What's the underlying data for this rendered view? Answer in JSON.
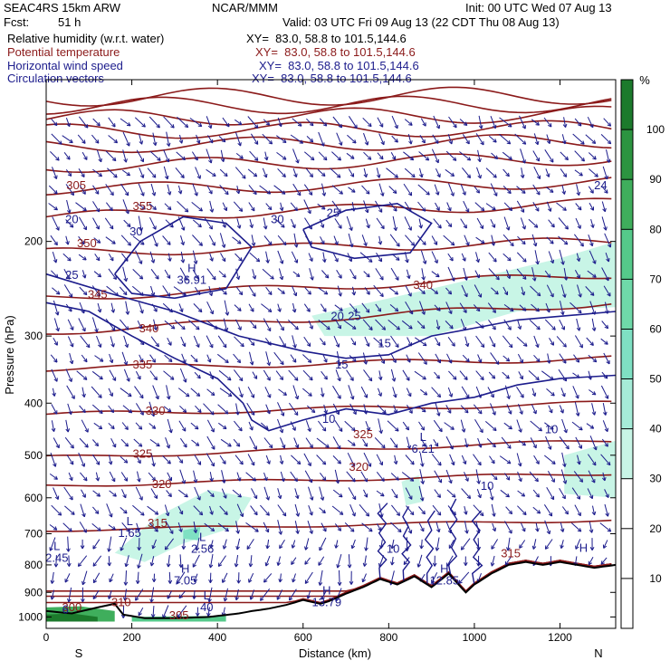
{
  "header": {
    "model": "SEAC4RS 15km ARW",
    "center": "NCAR/MMM",
    "init": "Init: 00 UTC Wed 07 Aug 13",
    "fcst_label": "Fcst:",
    "fcst_value": "51 h",
    "valid": "Valid: 03 UTC Fri 09 Aug 13 (22 CDT Thu 08 Aug 13)",
    "fields": [
      {
        "name": "Relative humidity (w.r.t. water)",
        "xy": "XY=  83.0, 58.8 to 101.5,144.6",
        "color": "#000000"
      },
      {
        "name": "Potential temperature",
        "xy": "XY=  83.0, 58.8 to 101.5,144.6",
        "color": "#8b1a1a"
      },
      {
        "name": "Horizontal wind speed",
        "xy": "XY=  83.0, 58.8 to 101.5,144.6",
        "color": "#1c1c8c"
      },
      {
        "name": "Circulation vectors",
        "xy": "XY=  83.0, 58.8 to 101.5,144.6",
        "color": "#1c1c8c"
      }
    ]
  },
  "chart_data": {
    "type": "heatmap",
    "xlabel": "Distance (km)",
    "ylabel": "Pressure (hPa)",
    "xlim": [
      0,
      1330
    ],
    "ylim": [
      1050,
      100
    ],
    "y_scale": "log",
    "x_ticks": [
      0,
      200,
      400,
      600,
      800,
      1000,
      1200
    ],
    "y_ticks": [
      200,
      300,
      400,
      500,
      600,
      700,
      800,
      900,
      1000
    ],
    "x_endpoints": {
      "left": "S",
      "right": "N"
    },
    "colorbar": {
      "unit": "%",
      "ticks": [
        10,
        20,
        30,
        40,
        50,
        60,
        70,
        80,
        90,
        100
      ],
      "colors": [
        "#ffffff",
        "#ffffff",
        "#ffffff",
        "#c8f5e6",
        "#a6ecd8",
        "#7fe0c3",
        "#6fd9a9",
        "#55c98a",
        "#3fae5c",
        "#2c9440",
        "#1c7a2c"
      ]
    },
    "theta_labels": [
      {
        "value": "305",
        "x": 70,
        "p": 160
      },
      {
        "value": "350",
        "x": 95,
        "p": 205
      },
      {
        "value": "355",
        "x": 225,
        "p": 175
      },
      {
        "value": "345",
        "x": 120,
        "p": 255
      },
      {
        "value": "340",
        "x": 240,
        "p": 295
      },
      {
        "value": "340",
        "x": 880,
        "p": 245
      },
      {
        "value": "335",
        "x": 225,
        "p": 345
      },
      {
        "value": "330",
        "x": 255,
        "p": 420
      },
      {
        "value": "325",
        "x": 225,
        "p": 505
      },
      {
        "value": "325",
        "x": 740,
        "p": 465
      },
      {
        "value": "320",
        "x": 270,
        "p": 575
      },
      {
        "value": "320",
        "x": 730,
        "p": 535
      },
      {
        "value": "315",
        "x": 260,
        "p": 680
      },
      {
        "value": "315",
        "x": 1085,
        "p": 775
      },
      {
        "value": "310",
        "x": 175,
        "p": 955
      },
      {
        "value": "305",
        "x": 310,
        "p": 1010
      },
      {
        "value": "300",
        "x": 60,
        "p": 975
      }
    ],
    "speed_labels": [
      {
        "value": "20",
        "x": 60,
        "p": 185
      },
      {
        "value": "30",
        "x": 210,
        "p": 195
      },
      {
        "value": "25",
        "x": 60,
        "p": 235
      },
      {
        "value": "30",
        "x": 540,
        "p": 185
      },
      {
        "value": "25",
        "x": 670,
        "p": 180
      },
      {
        "value": "20",
        "x": 680,
        "p": 280
      },
      {
        "value": "25",
        "x": 720,
        "p": 280
      },
      {
        "value": "15",
        "x": 790,
        "p": 315
      },
      {
        "value": "15",
        "x": 690,
        "p": 345
      },
      {
        "value": "10",
        "x": 660,
        "p": 435
      },
      {
        "value": "10",
        "x": 1180,
        "p": 455
      },
      {
        "value": "10",
        "x": 1030,
        "p": 580
      },
      {
        "value": "10",
        "x": 810,
        "p": 760
      },
      {
        "value": "6",
        "x": 45,
        "p": 985
      }
    ],
    "extrema": [
      {
        "label": "H",
        "value": "36.91",
        "x": 340,
        "p": 240
      },
      {
        "label": "L",
        "value": "6.21",
        "x": 880,
        "p": 495
      },
      {
        "label": "L",
        "value": "1.65",
        "x": 195,
        "p": 710
      },
      {
        "label": "L",
        "value": "2.56",
        "x": 365,
        "p": 760
      },
      {
        "label": "L",
        "value": "2.45",
        "x": 25,
        "p": 790
      },
      {
        "label": "H",
        "value": "7.05",
        "x": 325,
        "p": 870
      },
      {
        "label": "H",
        "value": "12.85",
        "x": 930,
        "p": 870
      },
      {
        "label": "H",
        "value": "13.79",
        "x": 655,
        "p": 955
      },
      {
        "label": "L",
        "value": "40",
        "x": 375,
        "p": 975
      },
      {
        "label": "H",
        "value": "",
        "x": 1255,
        "p": 795
      },
      {
        "label": "",
        "value": "24",
        "x": 1295,
        "p": 160
      }
    ]
  }
}
